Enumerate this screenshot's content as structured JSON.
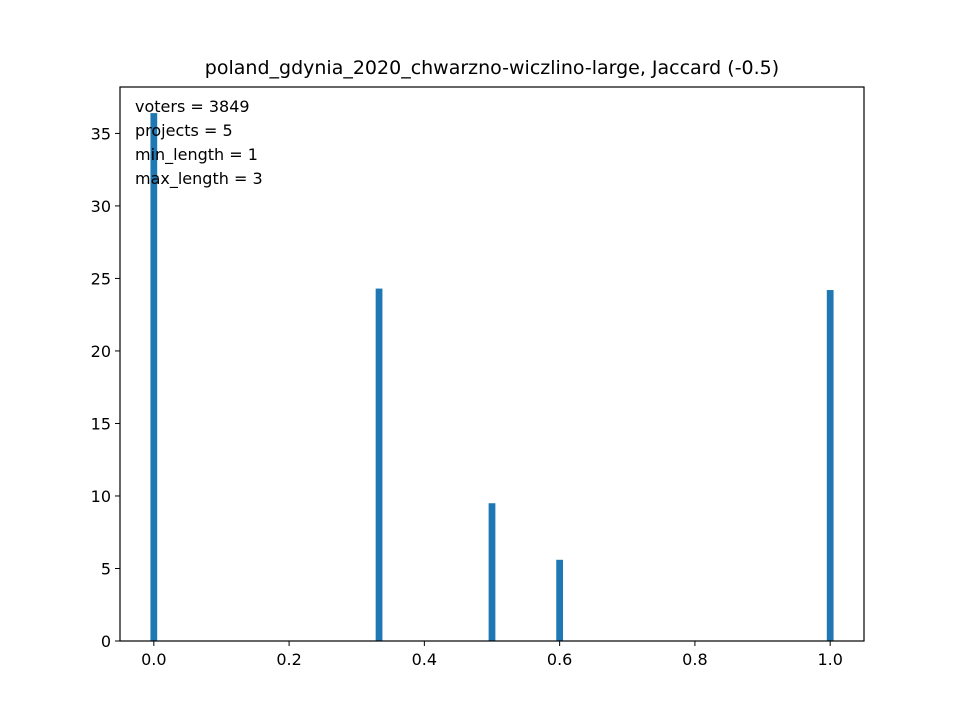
{
  "chart_data": {
    "type": "bar",
    "title": "poland_gdynia_2020_chwarzno-wiczlino-large, Jaccard (-0.5)",
    "xlabel": "",
    "ylabel": "",
    "xlim": [
      -0.05,
      1.05
    ],
    "ylim": [
      0,
      38.2
    ],
    "x_ticks": [
      0.0,
      0.2,
      0.4,
      0.6,
      0.8,
      1.0
    ],
    "x_tick_labels": [
      "0.0",
      "0.2",
      "0.4",
      "0.6",
      "0.8",
      "1.0"
    ],
    "y_ticks": [
      0,
      5,
      10,
      15,
      20,
      25,
      30,
      35
    ],
    "y_tick_labels": [
      "0",
      "5",
      "10",
      "15",
      "20",
      "25",
      "30",
      "35"
    ],
    "bar_width": 0.01,
    "bars": [
      {
        "x": 0.0,
        "value": 36.4
      },
      {
        "x": 0.333,
        "value": 24.3
      },
      {
        "x": 0.5,
        "value": 9.5
      },
      {
        "x": 0.6,
        "value": 5.6
      },
      {
        "x": 1.0,
        "value": 24.2
      }
    ],
    "annotations": [
      "voters = 3849",
      "projects = 5",
      "min_length = 1",
      "max_length = 3"
    ],
    "grid": false,
    "legend": "none",
    "bar_color": "#1f77b4"
  }
}
